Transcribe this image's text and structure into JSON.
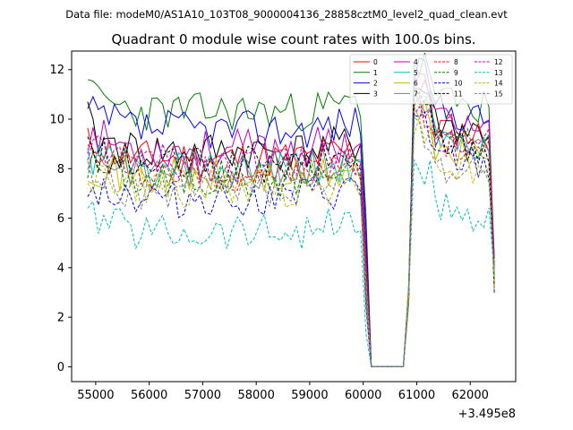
{
  "header": {
    "suptitle": "Data file: modeM0/AS1A10_103T08_9000004136_28858cztM0_level2_quad_clean.evt",
    "title": "Quadrant 0 module wise count rates with 100.0s bins."
  },
  "chart_data": {
    "type": "line",
    "title": "Quadrant 0 module wise count rates with 100.0s bins.",
    "xlabel": "",
    "ylabel": "",
    "x_offset_label": "+3.495e8",
    "xlim": [
      54550,
      62850
    ],
    "ylim": [
      -0.6,
      12.75
    ],
    "xticks": [
      55000,
      56000,
      57000,
      58000,
      59000,
      60000,
      61000,
      62000
    ],
    "xtick_labels": [
      "55000",
      "56000",
      "57000",
      "58000",
      "59000",
      "60000",
      "61000",
      "62000"
    ],
    "yticks": [
      0,
      2,
      4,
      6,
      8,
      10,
      12
    ],
    "ytick_labels": [
      "0",
      "2",
      "4",
      "6",
      "8",
      "10",
      "12"
    ],
    "legend_position": "top-right",
    "x_segments": [
      {
        "start": 54850,
        "end": 60050,
        "step": 100
      },
      {
        "start": 60850,
        "end": 62450,
        "step": 100
      }
    ],
    "gap_value": 0,
    "series": [
      {
        "name": "0",
        "color": "#ff0000",
        "dash": "solid",
        "level": 8.4,
        "post_level": 9.9,
        "seed": 11
      },
      {
        "name": "1",
        "color": "#008000",
        "dash": "solid",
        "level": 10.3,
        "post_level": 11.0,
        "seed": 23,
        "first": 11.6,
        "peak": 11.9
      },
      {
        "name": "2",
        "color": "#0000ff",
        "dash": "solid",
        "level": 9.6,
        "post_level": 10.6,
        "seed": 37
      },
      {
        "name": "3",
        "color": "#000000",
        "dash": "solid",
        "level": 8.7,
        "post_level": 10.0,
        "seed": 41,
        "first": 10.7
      },
      {
        "name": "4",
        "color": "#bf00bf",
        "dash": "solid",
        "level": 8.8,
        "post_level": 10.2,
        "seed": 53
      },
      {
        "name": "5",
        "color": "#00bfbf",
        "dash": "solid",
        "level": 7.9,
        "post_level": 9.4,
        "seed": 61
      },
      {
        "name": "6",
        "color": "#bfbf00",
        "dash": "solid",
        "level": 7.6,
        "post_level": 9.0,
        "seed": 71
      },
      {
        "name": "7",
        "color": "#808080",
        "dash": "solid",
        "level": 8.0,
        "post_level": 9.3,
        "seed": 83
      },
      {
        "name": "8",
        "color": "#ff0000",
        "dash": "dashed",
        "level": 7.9,
        "post_level": 9.2,
        "seed": 97
      },
      {
        "name": "9",
        "color": "#008000",
        "dash": "dashed",
        "level": 7.6,
        "post_level": 9.6,
        "seed": 101
      },
      {
        "name": "10",
        "color": "#0000ff",
        "dash": "dashed",
        "level": 6.8,
        "post_level": 8.6,
        "seed": 113
      },
      {
        "name": "11",
        "color": "#000000",
        "dash": "dashed",
        "level": 8.1,
        "post_level": 9.4,
        "seed": 127
      },
      {
        "name": "12",
        "color": "#bf00bf",
        "dash": "dashed",
        "level": 8.2,
        "post_level": 9.6,
        "seed": 131
      },
      {
        "name": "13",
        "color": "#00bfbf",
        "dash": "dashed",
        "level": 5.5,
        "post_level": 6.6,
        "seed": 139,
        "first": 6.4
      },
      {
        "name": "14",
        "color": "#bfbf00",
        "dash": "dashed",
        "level": 7.2,
        "post_level": 8.4,
        "seed": 149
      },
      {
        "name": "15",
        "color": "#808080",
        "dash": "dashed",
        "level": 7.0,
        "post_level": 8.3,
        "seed": 157
      }
    ]
  }
}
